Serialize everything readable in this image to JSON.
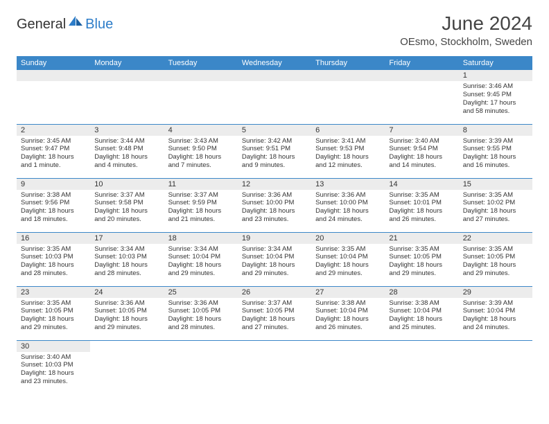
{
  "brand": {
    "part1": "General",
    "part2": "Blue"
  },
  "title": "June 2024",
  "location": "OEsmo, Stockholm, Sweden",
  "colors": {
    "header_bg": "#3b87c8",
    "header_text": "#ffffff",
    "daynum_bg": "#ececec",
    "border": "#3b87c8",
    "brand_blue": "#2d7dc9"
  },
  "weekdays": [
    "Sunday",
    "Monday",
    "Tuesday",
    "Wednesday",
    "Thursday",
    "Friday",
    "Saturday"
  ],
  "weeks": [
    [
      null,
      null,
      null,
      null,
      null,
      null,
      {
        "n": "1",
        "sr": "Sunrise: 3:46 AM",
        "ss": "Sunset: 9:45 PM",
        "dl": "Daylight: 17 hours and 58 minutes."
      }
    ],
    [
      {
        "n": "2",
        "sr": "Sunrise: 3:45 AM",
        "ss": "Sunset: 9:47 PM",
        "dl": "Daylight: 18 hours and 1 minute."
      },
      {
        "n": "3",
        "sr": "Sunrise: 3:44 AM",
        "ss": "Sunset: 9:48 PM",
        "dl": "Daylight: 18 hours and 4 minutes."
      },
      {
        "n": "4",
        "sr": "Sunrise: 3:43 AM",
        "ss": "Sunset: 9:50 PM",
        "dl": "Daylight: 18 hours and 7 minutes."
      },
      {
        "n": "5",
        "sr": "Sunrise: 3:42 AM",
        "ss": "Sunset: 9:51 PM",
        "dl": "Daylight: 18 hours and 9 minutes."
      },
      {
        "n": "6",
        "sr": "Sunrise: 3:41 AM",
        "ss": "Sunset: 9:53 PM",
        "dl": "Daylight: 18 hours and 12 minutes."
      },
      {
        "n": "7",
        "sr": "Sunrise: 3:40 AM",
        "ss": "Sunset: 9:54 PM",
        "dl": "Daylight: 18 hours and 14 minutes."
      },
      {
        "n": "8",
        "sr": "Sunrise: 3:39 AM",
        "ss": "Sunset: 9:55 PM",
        "dl": "Daylight: 18 hours and 16 minutes."
      }
    ],
    [
      {
        "n": "9",
        "sr": "Sunrise: 3:38 AM",
        "ss": "Sunset: 9:56 PM",
        "dl": "Daylight: 18 hours and 18 minutes."
      },
      {
        "n": "10",
        "sr": "Sunrise: 3:37 AM",
        "ss": "Sunset: 9:58 PM",
        "dl": "Daylight: 18 hours and 20 minutes."
      },
      {
        "n": "11",
        "sr": "Sunrise: 3:37 AM",
        "ss": "Sunset: 9:59 PM",
        "dl": "Daylight: 18 hours and 21 minutes."
      },
      {
        "n": "12",
        "sr": "Sunrise: 3:36 AM",
        "ss": "Sunset: 10:00 PM",
        "dl": "Daylight: 18 hours and 23 minutes."
      },
      {
        "n": "13",
        "sr": "Sunrise: 3:36 AM",
        "ss": "Sunset: 10:00 PM",
        "dl": "Daylight: 18 hours and 24 minutes."
      },
      {
        "n": "14",
        "sr": "Sunrise: 3:35 AM",
        "ss": "Sunset: 10:01 PM",
        "dl": "Daylight: 18 hours and 26 minutes."
      },
      {
        "n": "15",
        "sr": "Sunrise: 3:35 AM",
        "ss": "Sunset: 10:02 PM",
        "dl": "Daylight: 18 hours and 27 minutes."
      }
    ],
    [
      {
        "n": "16",
        "sr": "Sunrise: 3:35 AM",
        "ss": "Sunset: 10:03 PM",
        "dl": "Daylight: 18 hours and 28 minutes."
      },
      {
        "n": "17",
        "sr": "Sunrise: 3:34 AM",
        "ss": "Sunset: 10:03 PM",
        "dl": "Daylight: 18 hours and 28 minutes."
      },
      {
        "n": "18",
        "sr": "Sunrise: 3:34 AM",
        "ss": "Sunset: 10:04 PM",
        "dl": "Daylight: 18 hours and 29 minutes."
      },
      {
        "n": "19",
        "sr": "Sunrise: 3:34 AM",
        "ss": "Sunset: 10:04 PM",
        "dl": "Daylight: 18 hours and 29 minutes."
      },
      {
        "n": "20",
        "sr": "Sunrise: 3:35 AM",
        "ss": "Sunset: 10:04 PM",
        "dl": "Daylight: 18 hours and 29 minutes."
      },
      {
        "n": "21",
        "sr": "Sunrise: 3:35 AM",
        "ss": "Sunset: 10:05 PM",
        "dl": "Daylight: 18 hours and 29 minutes."
      },
      {
        "n": "22",
        "sr": "Sunrise: 3:35 AM",
        "ss": "Sunset: 10:05 PM",
        "dl": "Daylight: 18 hours and 29 minutes."
      }
    ],
    [
      {
        "n": "23",
        "sr": "Sunrise: 3:35 AM",
        "ss": "Sunset: 10:05 PM",
        "dl": "Daylight: 18 hours and 29 minutes."
      },
      {
        "n": "24",
        "sr": "Sunrise: 3:36 AM",
        "ss": "Sunset: 10:05 PM",
        "dl": "Daylight: 18 hours and 29 minutes."
      },
      {
        "n": "25",
        "sr": "Sunrise: 3:36 AM",
        "ss": "Sunset: 10:05 PM",
        "dl": "Daylight: 18 hours and 28 minutes."
      },
      {
        "n": "26",
        "sr": "Sunrise: 3:37 AM",
        "ss": "Sunset: 10:05 PM",
        "dl": "Daylight: 18 hours and 27 minutes."
      },
      {
        "n": "27",
        "sr": "Sunrise: 3:38 AM",
        "ss": "Sunset: 10:04 PM",
        "dl": "Daylight: 18 hours and 26 minutes."
      },
      {
        "n": "28",
        "sr": "Sunrise: 3:38 AM",
        "ss": "Sunset: 10:04 PM",
        "dl": "Daylight: 18 hours and 25 minutes."
      },
      {
        "n": "29",
        "sr": "Sunrise: 3:39 AM",
        "ss": "Sunset: 10:04 PM",
        "dl": "Daylight: 18 hours and 24 minutes."
      }
    ],
    [
      {
        "n": "30",
        "sr": "Sunrise: 3:40 AM",
        "ss": "Sunset: 10:03 PM",
        "dl": "Daylight: 18 hours and 23 minutes."
      },
      null,
      null,
      null,
      null,
      null,
      null
    ]
  ]
}
